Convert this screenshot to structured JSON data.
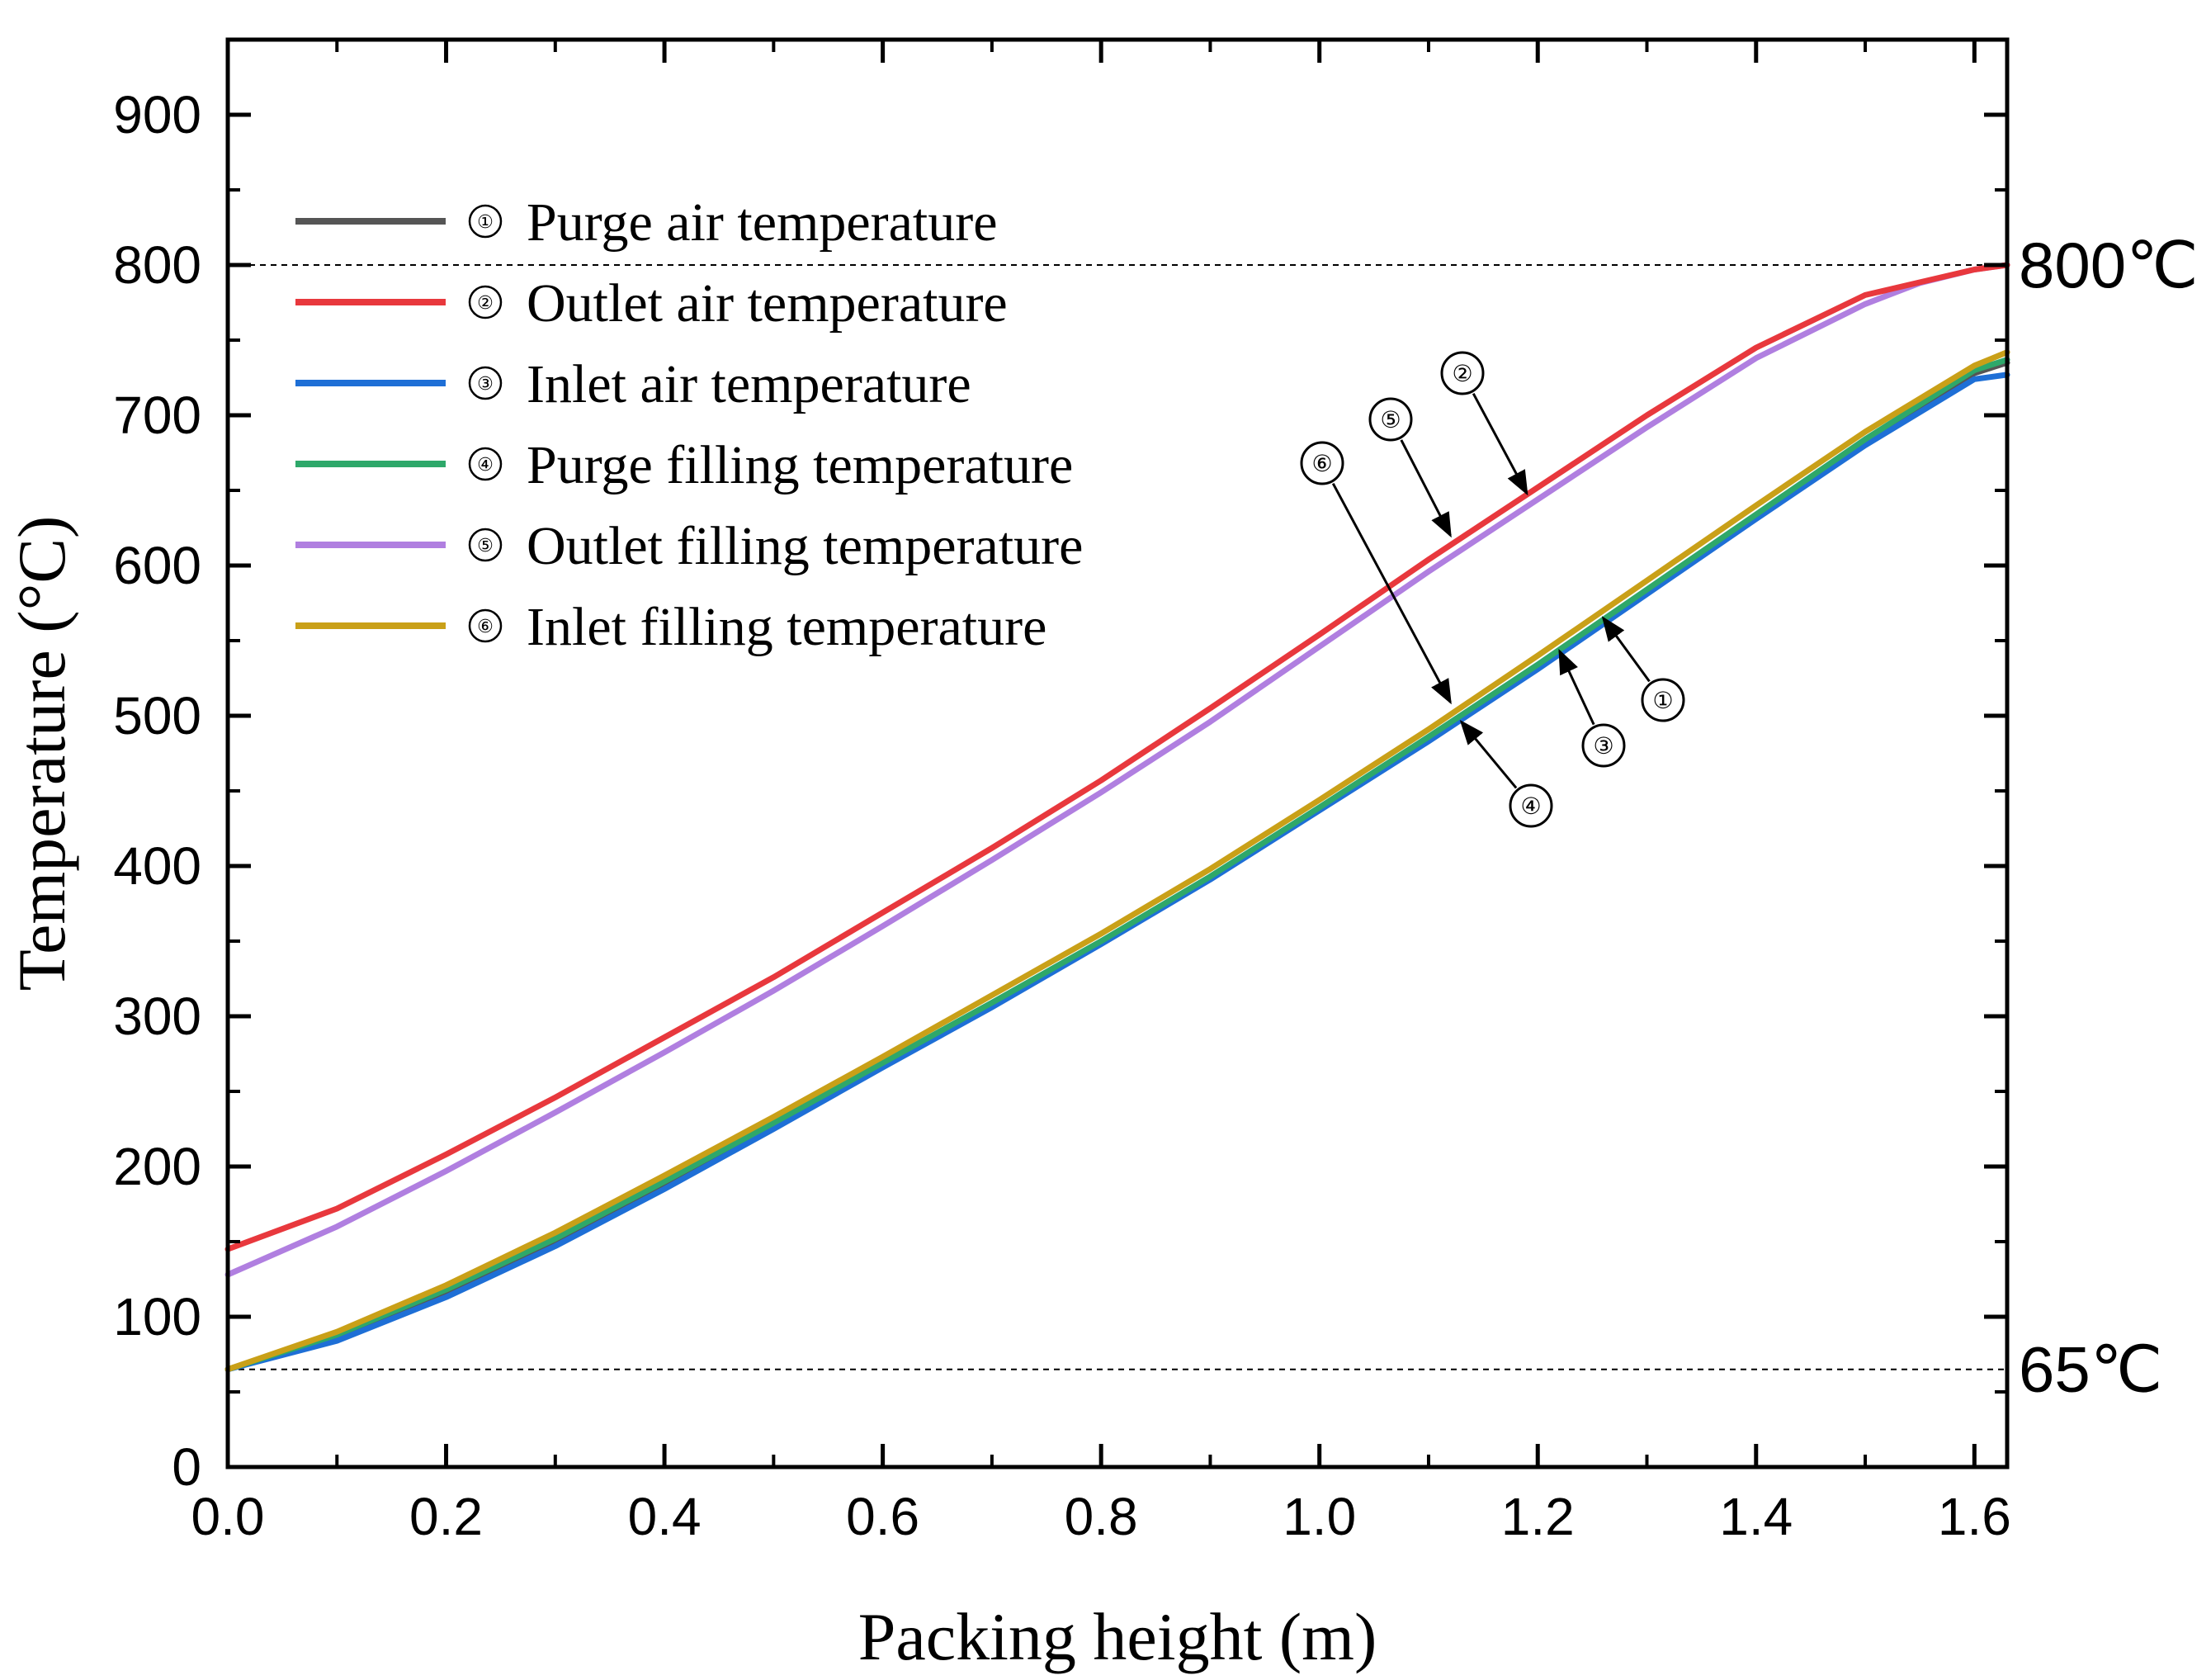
{
  "chart_data": {
    "type": "line",
    "xlabel": "Packing height (m)",
    "ylabel": "Temperature (°C)",
    "xlim": [
      0.0,
      1.63
    ],
    "ylim": [
      0,
      950
    ],
    "xticks": [
      0.0,
      0.2,
      0.4,
      0.6,
      0.8,
      1.0,
      1.2,
      1.4,
      1.6
    ],
    "xtick_labels": [
      "0.0",
      "0.2",
      "0.4",
      "0.6",
      "0.8",
      "1.0",
      "1.2",
      "1.4",
      "1.6"
    ],
    "yticks": [
      0,
      100,
      200,
      300,
      400,
      500,
      600,
      700,
      800,
      900
    ],
    "ytick_labels": [
      "0",
      "100",
      "200",
      "300",
      "400",
      "500",
      "600",
      "700",
      "800",
      "900"
    ],
    "reference_lines": [
      {
        "name": "max-temp",
        "y": 800,
        "label": "800℃"
      },
      {
        "name": "min-temp",
        "y": 65,
        "label": "65℃"
      }
    ],
    "legend_position": "upper-left",
    "series": [
      {
        "id": "1",
        "marker": "①",
        "name": "Purge air temperature",
        "color": "#555555",
        "x": [
          0.0,
          0.1,
          0.2,
          0.3,
          0.4,
          0.5,
          0.6,
          0.7,
          0.8,
          0.9,
          1.0,
          1.1,
          1.2,
          1.3,
          1.4,
          1.5,
          1.6,
          1.63
        ],
        "y": [
          65,
          87,
          116,
          150,
          188,
          228,
          268,
          308,
          349,
          392,
          438,
          484,
          532,
          582,
          632,
          682,
          728,
          735
        ]
      },
      {
        "id": "2",
        "marker": "②",
        "name": "Outlet air temperature",
        "color": "#e8383d",
        "x": [
          0.0,
          0.1,
          0.2,
          0.3,
          0.4,
          0.5,
          0.6,
          0.7,
          0.8,
          0.9,
          1.0,
          1.1,
          1.2,
          1.3,
          1.4,
          1.5,
          1.6,
          1.63
        ],
        "y": [
          145,
          172,
          208,
          246,
          286,
          326,
          369,
          412,
          457,
          505,
          554,
          604,
          652,
          700,
          745,
          780,
          797,
          800
        ]
      },
      {
        "id": "3",
        "marker": "③",
        "name": "Inlet air temperature",
        "color": "#1e6fd6",
        "x": [
          0.0,
          0.1,
          0.2,
          0.3,
          0.4,
          0.5,
          0.6,
          0.7,
          0.8,
          0.9,
          1.0,
          1.1,
          1.2,
          1.3,
          1.4,
          1.5,
          1.6,
          1.63
        ],
        "y": [
          65,
          84,
          113,
          147,
          185,
          225,
          266,
          306,
          348,
          391,
          437,
          483,
          531,
          581,
          631,
          680,
          724,
          727
        ]
      },
      {
        "id": "4",
        "marker": "④",
        "name": "Purge filling temperature",
        "color": "#2ea86a",
        "x": [
          0.0,
          0.1,
          0.2,
          0.3,
          0.4,
          0.5,
          0.6,
          0.7,
          0.8,
          0.9,
          1.0,
          1.1,
          1.2,
          1.3,
          1.4,
          1.5,
          1.6,
          1.63
        ],
        "y": [
          65,
          88,
          118,
          152,
          190,
          229,
          269,
          309,
          350,
          393,
          439,
          486,
          534,
          584,
          634,
          684,
          730,
          737
        ]
      },
      {
        "id": "5",
        "marker": "⑤",
        "name": "Outlet filling temperature",
        "color": "#b07fe0",
        "x": [
          0.0,
          0.1,
          0.2,
          0.3,
          0.4,
          0.5,
          0.6,
          0.7,
          0.8,
          0.9,
          1.0,
          1.1,
          1.2,
          1.3,
          1.4,
          1.5,
          1.55,
          1.6,
          1.63
        ],
        "y": [
          128,
          160,
          197,
          236,
          276,
          317,
          360,
          404,
          449,
          496,
          546,
          596,
          644,
          692,
          738,
          774,
          788,
          797,
          800
        ]
      },
      {
        "id": "6",
        "marker": "⑥",
        "name": "Inlet filling temperature",
        "color": "#c9a018",
        "x": [
          0.0,
          0.1,
          0.2,
          0.3,
          0.4,
          0.5,
          0.6,
          0.7,
          0.8,
          0.9,
          1.0,
          1.1,
          1.2,
          1.3,
          1.4,
          1.5,
          1.6,
          1.63
        ],
        "y": [
          65,
          90,
          121,
          156,
          194,
          233,
          273,
          314,
          355,
          398,
          444,
          491,
          540,
          590,
          640,
          689,
          733,
          742
        ]
      }
    ],
    "annotations": [
      {
        "series": "1",
        "label": "①",
        "x": 1.26,
        "y": 565
      },
      {
        "series": "2",
        "label": "②",
        "x": 1.19,
        "y": 648
      },
      {
        "series": "3",
        "label": "③",
        "x": 1.22,
        "y": 543
      },
      {
        "series": "4",
        "label": "④",
        "x": 1.13,
        "y": 496
      },
      {
        "series": "5",
        "label": "⑤",
        "x": 1.12,
        "y": 620
      },
      {
        "series": "6",
        "label": "⑥",
        "x": 1.12,
        "y": 509
      }
    ]
  }
}
